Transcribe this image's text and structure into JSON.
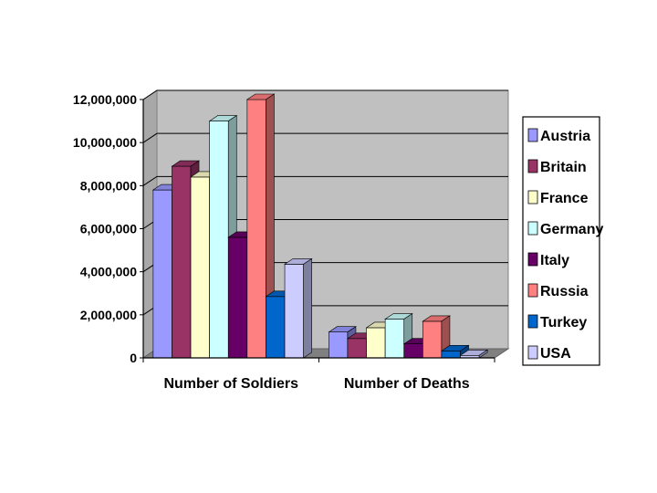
{
  "chart_data": {
    "type": "bar",
    "title": "",
    "xlabel": "",
    "ylabel": "",
    "style": "3d-clustered-column",
    "grid": true,
    "legend_position": "right",
    "ylim": [
      0,
      12000000
    ],
    "yticks": [
      "0",
      "2,000,000",
      "4,000,000",
      "6,000,000",
      "8,000,000",
      "10,000,000",
      "12,000,000"
    ],
    "categories": [
      "Number of Soldiers",
      "Number of Deaths"
    ],
    "series": [
      {
        "name": "Austria",
        "color": "#9999ff",
        "values": [
          7800000,
          1200000
        ]
      },
      {
        "name": "Britain",
        "color": "#993366",
        "values": [
          8900000,
          900000
        ]
      },
      {
        "name": "France",
        "color": "#ffffcc",
        "values": [
          8400000,
          1400000
        ]
      },
      {
        "name": "Germany",
        "color": "#ccffff",
        "values": [
          11000000,
          1800000
        ]
      },
      {
        "name": "Italy",
        "color": "#660066",
        "values": [
          5600000,
          650000
        ]
      },
      {
        "name": "Russia",
        "color": "#ff8080",
        "values": [
          12000000,
          1700000
        ]
      },
      {
        "name": "Turkey",
        "color": "#0066cc",
        "values": [
          2850000,
          325000
        ]
      },
      {
        "name": "USA",
        "color": "#ccccff",
        "values": [
          4350000,
          115000
        ]
      }
    ]
  }
}
